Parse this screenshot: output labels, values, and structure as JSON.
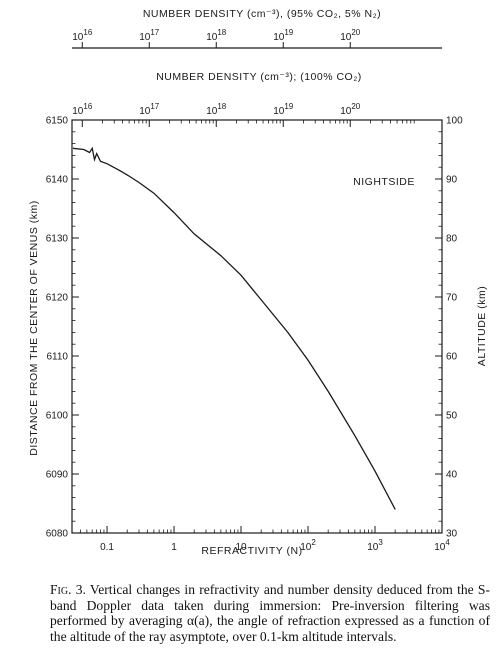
{
  "figure": {
    "top_axis_outer_title": "NUMBER DENSITY (cm⁻³), (95% CO₂, 5% N₂)",
    "top_axis_inner_title": "NUMBER DENSITY (cm⁻³); (100% CO₂)",
    "nightside_label": "NIGHTSIDE",
    "caption_label": "Fig. 3.",
    "caption_text": "Vertical changes in refractivity and number density deduced from the S-band Doppler data taken during immersion: Pre-inversion filtering was performed by averaging α(a), the angle of refraction expressed as a function of the altitude of the ray asymptote, over 0.1-km altitude intervals."
  },
  "chart_data": {
    "type": "line",
    "xlabel": "REFRACTIVITY (N)",
    "ylabel": "DISTANCE FROM THE CENTER OF VENUS (km)",
    "y2label": "ALTITUDE (km)",
    "x_scale": "log",
    "xlim": [
      0.03,
      10000
    ],
    "ylim": [
      6080,
      6150
    ],
    "y2lim": [
      30,
      100
    ],
    "x_ticks": [
      {
        "v": 0.1,
        "label": "0.1"
      },
      {
        "v": 1,
        "label": "1"
      },
      {
        "v": 10,
        "label": "10"
      },
      {
        "v": 100,
        "label": "10",
        "sup": "2"
      },
      {
        "v": 1000,
        "label": "10",
        "sup": "3"
      },
      {
        "v": 10000,
        "label": "10",
        "sup": "4"
      }
    ],
    "y_ticks": [
      6080,
      6090,
      6100,
      6110,
      6120,
      6130,
      6140,
      6150
    ],
    "y2_ticks": [
      30,
      40,
      50,
      60,
      70,
      80,
      90,
      100
    ],
    "top_inner_ticks": [
      {
        "v": 0.0427,
        "label": "10",
        "sup": "16"
      },
      {
        "v": 0.427,
        "label": "10",
        "sup": "17"
      },
      {
        "v": 4.27,
        "label": "10",
        "sup": "18"
      },
      {
        "v": 42.7,
        "label": "10",
        "sup": "19"
      },
      {
        "v": 427,
        "label": "10",
        "sup": "20"
      }
    ],
    "top_outer_ticks": [
      {
        "v": 0.0427,
        "label": "10",
        "sup": "16"
      },
      {
        "v": 0.427,
        "label": "10",
        "sup": "17"
      },
      {
        "v": 4.27,
        "label": "10",
        "sup": "18"
      },
      {
        "v": 42.7,
        "label": "10",
        "sup": "19"
      },
      {
        "v": 427,
        "label": "10",
        "sup": "20"
      }
    ],
    "grid": false,
    "series": [
      {
        "points": [
          [
            0.031,
            6145.2
          ],
          [
            0.045,
            6145.0
          ],
          [
            0.055,
            6144.5
          ],
          [
            0.06,
            6145.2
          ],
          [
            0.065,
            6143.3
          ],
          [
            0.07,
            6144.3
          ],
          [
            0.08,
            6143.0
          ],
          [
            0.1,
            6142.6
          ],
          [
            0.15,
            6141.5
          ],
          [
            0.2,
            6140.7
          ],
          [
            0.3,
            6139.4
          ],
          [
            0.5,
            6137.6
          ],
          [
            1,
            6134.3
          ],
          [
            2,
            6130.7
          ],
          [
            5,
            6127.0
          ],
          [
            10,
            6123.7
          ],
          [
            20,
            6119.5
          ],
          [
            50,
            6114.0
          ],
          [
            100,
            6109.3
          ],
          [
            200,
            6104.0
          ],
          [
            500,
            6096.5
          ],
          [
            1000,
            6090.5
          ],
          [
            2000,
            6084.0
          ]
        ]
      }
    ]
  }
}
